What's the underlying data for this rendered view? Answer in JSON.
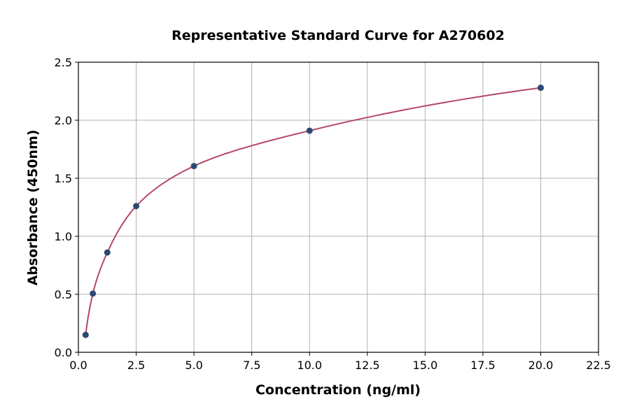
{
  "chart_data": {
    "type": "scatter",
    "title": "Representative Standard Curve for A270602",
    "xlabel": "Concentration (ng/ml)",
    "ylabel": "Absorbance (450nm)",
    "xlim": [
      0,
      22.5
    ],
    "ylim": [
      0,
      2.5
    ],
    "xticks": [
      "0.0",
      "2.5",
      "5.0",
      "7.5",
      "10.0",
      "12.5",
      "15.0",
      "17.5",
      "20.0",
      "22.5"
    ],
    "yticks": [
      "0.0",
      "0.5",
      "1.0",
      "1.5",
      "2.0",
      "2.5"
    ],
    "grid": true,
    "x": [
      0.3125,
      0.625,
      1.25,
      2.5,
      5,
      10,
      20
    ],
    "y": [
      0.15,
      0.506,
      0.86,
      1.26,
      1.605,
      1.91,
      2.28
    ],
    "fit_curve": true,
    "colors": {
      "points": "#2b4a6f",
      "curve": "#b5476b",
      "grid": "#b0b0b0"
    }
  }
}
